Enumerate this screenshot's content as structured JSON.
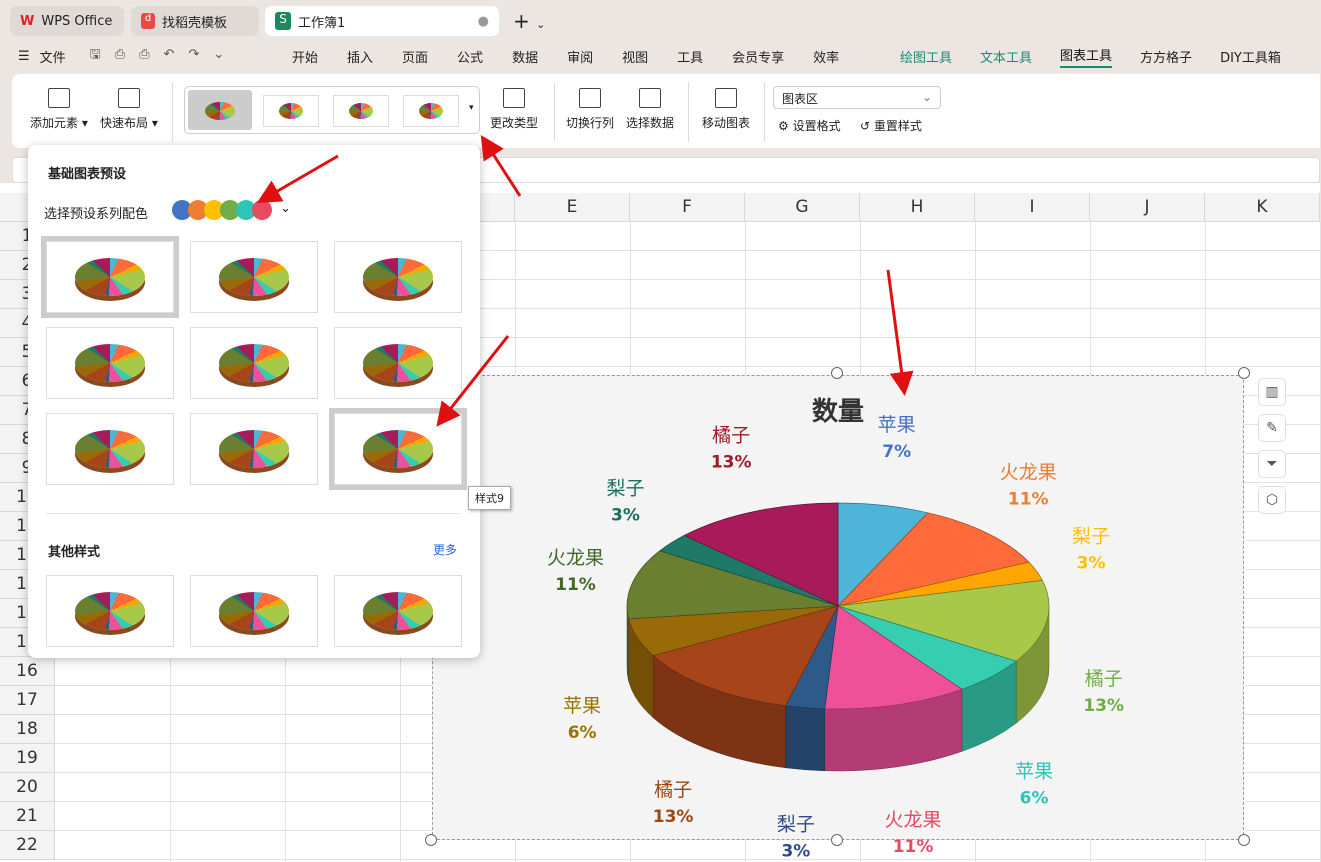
{
  "tabs": [
    {
      "label": "WPS Office",
      "icon": "wps-logo"
    },
    {
      "label": "找稻壳模板",
      "icon": "docer-logo"
    },
    {
      "label": "工作簿1",
      "icon": "sheet-logo",
      "active": true
    }
  ],
  "menu": {
    "file": "文件",
    "items": [
      "开始",
      "插入",
      "页面",
      "公式",
      "数据",
      "审阅",
      "视图",
      "工具",
      "会员专享",
      "效率"
    ],
    "context": [
      "绘图工具",
      "文本工具",
      "图表工具"
    ],
    "extra": [
      "方方格子",
      "DIY工具箱"
    ],
    "active": "图表工具"
  },
  "ribbon": {
    "add_element": "添加元素",
    "quick_layout": "快速布局",
    "change_type": "更改类型",
    "switch_rowcol": "切换行列",
    "select_data": "选择数据",
    "move_chart": "移动图表",
    "area_select": "图表区",
    "set_format": "设置格式",
    "reset_style": "重置样式"
  },
  "popup": {
    "title": "基础图表预设",
    "color_label": "选择预设系列配色",
    "swatches": [
      "#4472c4",
      "#ed7d31",
      "#ffc000",
      "#70ad47",
      "#2ec4b6",
      "#e84a5f"
    ],
    "other_title": "其他样式",
    "more": "更多",
    "tooltip": "样式9"
  },
  "columns": [
    "E",
    "F",
    "G",
    "H",
    "I",
    "J",
    "K"
  ],
  "rows": [
    "1",
    "2",
    "3",
    "4",
    "5",
    "6",
    "7",
    "8",
    "9",
    "10",
    "11",
    "12",
    "13",
    "14",
    "15",
    "16",
    "17",
    "18",
    "19",
    "20",
    "21",
    "22"
  ],
  "accent": "#1a8a76",
  "chart_data": {
    "type": "pie",
    "title": "数量",
    "style": "3d",
    "categories": [
      "苹果",
      "火龙果",
      "梨子",
      "橘子",
      "苹果",
      "火龙果",
      "梨子",
      "橘子",
      "苹果",
      "火龙果",
      "梨子",
      "橘子"
    ],
    "values": [
      7,
      11,
      3,
      13,
      6,
      11,
      3,
      13,
      6,
      11,
      3,
      13
    ],
    "labels": [
      "7%",
      "11%",
      "3%",
      "13%",
      "6%",
      "11%",
      "3%",
      "13%",
      "6%",
      "11%",
      "3%",
      "13%"
    ],
    "colors": [
      "#4db6d8",
      "#ff6a3a",
      "#ffa500",
      "#a8c84a",
      "#36cdb0",
      "#f0509a",
      "#2e5a8a",
      "#a8441a",
      "#9a6a08",
      "#6a8030",
      "#1e7a66",
      "#a81a5a"
    ],
    "label_colors": [
      "#4472c4",
      "#ed7d31",
      "#ffc000",
      "#70ad47",
      "#2ec4b6",
      "#e84a5f",
      "#2e4a8a",
      "#9e480e",
      "#997300",
      "#43682b",
      "#1a6e60",
      "#a0182c"
    ]
  }
}
